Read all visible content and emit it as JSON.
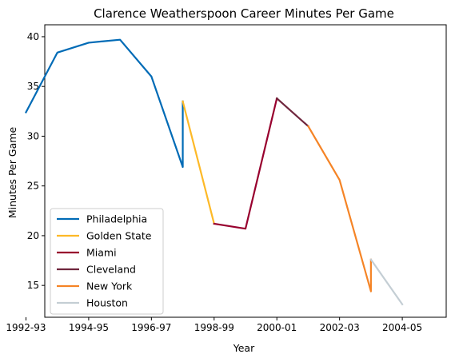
{
  "chart_data": {
    "type": "line",
    "title": "Clarence Weatherspoon Career Minutes Per Game",
    "xlabel": "Year",
    "ylabel": "Minutes Per Game",
    "x_ticks": [
      "1992-93",
      "1994-95",
      "1996-97",
      "1998-99",
      "2000-01",
      "2002-03",
      "2004-05"
    ],
    "y_ticks": [
      15,
      20,
      25,
      30,
      35,
      40
    ],
    "xlim": [
      1992.6,
      2005.4
    ],
    "ylim": [
      11.8,
      41.2
    ],
    "grid": false,
    "legend_position": "lower-left",
    "series": [
      {
        "name": "Philadelphia",
        "color": "#006bb6",
        "points": [
          [
            1992,
            32.4
          ],
          [
            1993,
            38.4
          ],
          [
            1994,
            39.4
          ],
          [
            1995,
            39.7
          ],
          [
            1996,
            36.0
          ],
          [
            1997,
            26.9
          ],
          [
            1997,
            33.5
          ]
        ]
      },
      {
        "name": "Golden State",
        "color": "#fdb927",
        "points": [
          [
            1997,
            33.5
          ],
          [
            1998,
            21.2
          ]
        ]
      },
      {
        "name": "Miami",
        "color": "#98002e",
        "points": [
          [
            1998,
            21.2
          ],
          [
            1999,
            20.7
          ],
          [
            2000,
            33.8
          ]
        ]
      },
      {
        "name": "Cleveland",
        "color": "#6f263d",
        "points": [
          [
            2000,
            33.8
          ],
          [
            2001,
            31.0
          ]
        ]
      },
      {
        "name": "New York",
        "color": "#f58426",
        "points": [
          [
            2001,
            31.0
          ],
          [
            2002,
            25.6
          ],
          [
            2003,
            14.4
          ],
          [
            2003,
            17.6
          ]
        ]
      },
      {
        "name": "Houston",
        "color": "#c4ced4",
        "points": [
          [
            2003,
            17.6
          ],
          [
            2004,
            13.1
          ]
        ]
      }
    ]
  }
}
